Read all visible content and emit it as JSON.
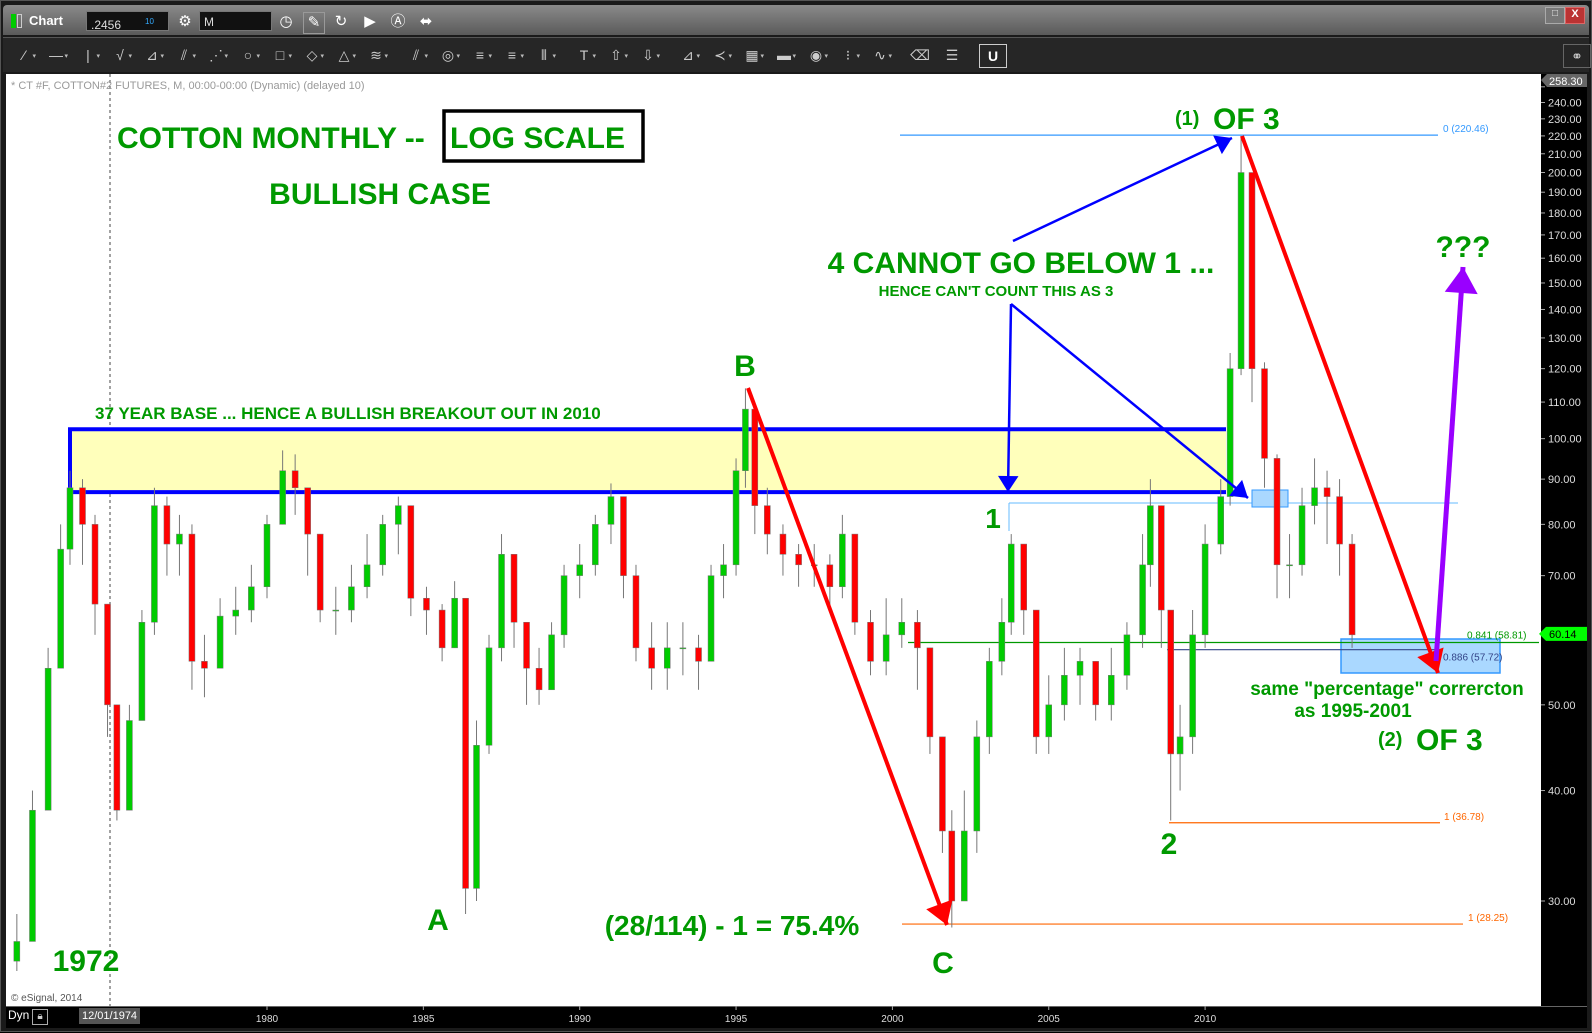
{
  "window": {
    "title": "Chart",
    "symbol_field": ".2456",
    "symbol_superscript": "10",
    "interval_field": "M",
    "minimize_label": "□",
    "close_label": "X"
  },
  "toolbar_icons": [
    "line-tool-icon",
    "horizontal-line-icon",
    "vertical-line-icon",
    "elliott-wave-icon",
    "fan-icon",
    "pitchfork-icon",
    "gann-fan-icon",
    "ellipse-icon",
    "rectangle-icon",
    "diamond-icon",
    "triangle-icon",
    "channel-icon",
    "parallel-lines-icon",
    "circles-icon",
    "fib-retracement-icon",
    "fib-extension-icon",
    "cycle-lines-icon",
    "text-icon",
    "arrow-up-icon",
    "arrow-down-icon",
    "speed-lines-icon",
    "speed-arcs-icon",
    "grid-icon",
    "mob-icon",
    "tj-icon",
    "pti-icon",
    "wave-label-icon",
    "eraser-icon",
    "notes-icon",
    "magnet-icon"
  ],
  "chart": {
    "header": "* CT #F, COTTON#2 FUTURES, M, 00:00-00:00 (Dynamic) (delayed 10)",
    "copyright": "© eSignal, 2014",
    "dyn_label": "Dyn",
    "cursor_date": "12/01/1974",
    "last_price_tag": "60.14",
    "max_price_tag": "258.30",
    "colors": {
      "up": "#00cc00",
      "down": "#ff0000",
      "annotation": "#009900",
      "base_box": "#ffffbb",
      "base_border": "#0000ff",
      "arrow_red": "#ff0000",
      "arrow_blue": "#0000ff",
      "arrow_purple": "#9900ff",
      "fib_orange": "#ff6600"
    }
  },
  "annotations": {
    "title": "COTTON MONTHLY --",
    "title_boxed": "LOG SCALE",
    "subtitle": "BULLISH CASE",
    "base_note": "37 YEAR BASE ... HENCE A BULLISH BREAKOUT OUT IN 2010",
    "label_B": "B",
    "label_A": "A",
    "label_C": "C",
    "label_1": "1",
    "label_2": "2",
    "label_1972": "1972",
    "wave1_prefix": "(1)",
    "wave1": "OF 3",
    "wave2_prefix": "(2)",
    "wave2": "OF 3",
    "cannot": "4 CANNOT GO BELOW 1 ...",
    "hence": "HENCE CAN'T COUNT THIS AS 3",
    "calc": "(28/114) - 1 = 75.4%",
    "same_pct": "same \"percentage\" corrercton",
    "as_period": "as 1995-2001",
    "question": "???"
  },
  "fib_labels": {
    "top": "0 (220.46)",
    "f841": "0.841 (58.81)",
    "f886": "0.886 (57.72)",
    "one_a": "1 (36.78)",
    "one_b": "1 (28.25)"
  },
  "chart_data": {
    "type": "candlestick",
    "title": "COTTON MONTHLY -- LOG SCALE",
    "y_scale": "log",
    "ylim": [
      24,
      258.3
    ],
    "xlim": [
      1971.7,
      2016.6
    ],
    "grid": false,
    "y_ticks": [
      "30.00",
      "40.00",
      "50.00",
      "60.00",
      "70.00",
      "80.00",
      "90.00",
      "100.00",
      "110.00",
      "120.00",
      "130.00",
      "140.00",
      "150.00",
      "160.00",
      "170.00",
      "180.00",
      "190.00",
      "200.00",
      "210.00",
      "220.00",
      "230.00",
      "240.00",
      "250.00"
    ],
    "x_ticks": [
      "1980",
      "1985",
      "1990",
      "1995",
      "2000",
      "2005",
      "2010"
    ],
    "fields": [
      "year",
      "close",
      "high",
      "low"
    ],
    "candles": [
      [
        1972.0,
        27,
        29,
        25
      ],
      [
        1972.5,
        38,
        40,
        30
      ],
      [
        1973.0,
        55,
        58,
        40
      ],
      [
        1973.4,
        75,
        80,
        55
      ],
      [
        1973.7,
        88,
        92,
        72
      ],
      [
        1974.1,
        80,
        90,
        72
      ],
      [
        1974.5,
        65,
        82,
        60
      ],
      [
        1974.9,
        50,
        65,
        46
      ],
      [
        1975.2,
        38,
        50,
        37
      ],
      [
        1975.6,
        48,
        50,
        38
      ],
      [
        1976.0,
        62,
        64,
        48
      ],
      [
        1976.4,
        84,
        88,
        60
      ],
      [
        1976.8,
        76,
        86,
        70
      ],
      [
        1977.2,
        78,
        82,
        70
      ],
      [
        1977.6,
        56,
        80,
        52
      ],
      [
        1978.0,
        55,
        60,
        51
      ],
      [
        1978.5,
        63,
        66,
        55
      ],
      [
        1979.0,
        64,
        68,
        60
      ],
      [
        1979.5,
        68,
        72,
        62
      ],
      [
        1980.0,
        80,
        82,
        66
      ],
      [
        1980.5,
        92,
        97,
        80
      ],
      [
        1980.9,
        88,
        96,
        82
      ],
      [
        1981.3,
        78,
        88,
        70
      ],
      [
        1981.7,
        64,
        78,
        62
      ],
      [
        1982.2,
        64,
        68,
        60
      ],
      [
        1982.7,
        68,
        72,
        62
      ],
      [
        1983.2,
        72,
        78,
        66
      ],
      [
        1983.7,
        80,
        82,
        70
      ],
      [
        1984.2,
        84,
        86,
        74
      ],
      [
        1984.6,
        66,
        84,
        63
      ],
      [
        1985.1,
        64,
        68,
        60
      ],
      [
        1985.6,
        58,
        65,
        56
      ],
      [
        1986.0,
        66,
        69,
        58
      ],
      [
        1986.35,
        31,
        66,
        29
      ],
      [
        1986.7,
        45,
        48,
        30
      ],
      [
        1987.1,
        58,
        60,
        44
      ],
      [
        1987.5,
        74,
        78,
        56
      ],
      [
        1987.9,
        62,
        72,
        58
      ],
      [
        1988.3,
        55,
        62,
        50
      ],
      [
        1988.7,
        52,
        58,
        50
      ],
      [
        1989.1,
        60,
        62,
        52
      ],
      [
        1989.5,
        70,
        72,
        58
      ],
      [
        1990.0,
        72,
        76,
        66
      ],
      [
        1990.5,
        80,
        82,
        70
      ],
      [
        1991.0,
        86,
        89,
        76
      ],
      [
        1991.4,
        70,
        86,
        66
      ],
      [
        1991.8,
        58,
        72,
        56
      ],
      [
        1992.3,
        55,
        62,
        52
      ],
      [
        1992.8,
        58,
        62,
        52
      ],
      [
        1993.3,
        58,
        62,
        54
      ],
      [
        1993.8,
        56,
        60,
        52
      ],
      [
        1994.2,
        70,
        72,
        56
      ],
      [
        1994.6,
        72,
        76,
        66
      ],
      [
        1995.0,
        92,
        95,
        70
      ],
      [
        1995.3,
        108,
        114,
        88
      ],
      [
        1995.6,
        84,
        108,
        78
      ],
      [
        1996.0,
        78,
        88,
        74
      ],
      [
        1996.5,
        74,
        80,
        70
      ],
      [
        1997.0,
        72,
        76,
        68
      ],
      [
        1997.5,
        72,
        76,
        68
      ],
      [
        1998.0,
        68,
        74,
        64
      ],
      [
        1998.4,
        78,
        82,
        66
      ],
      [
        1998.8,
        62,
        78,
        60
      ],
      [
        1999.3,
        56,
        64,
        54
      ],
      [
        1999.8,
        60,
        66,
        54
      ],
      [
        2000.3,
        62,
        66,
        58
      ],
      [
        2000.8,
        58,
        64,
        52
      ],
      [
        2001.2,
        46,
        58,
        44
      ],
      [
        2001.6,
        36,
        46,
        34
      ],
      [
        2001.9,
        30,
        38,
        28
      ],
      [
        2002.3,
        36,
        40,
        30
      ],
      [
        2002.7,
        46,
        48,
        34
      ],
      [
        2003.1,
        56,
        58,
        44
      ],
      [
        2003.5,
        62,
        66,
        54
      ],
      [
        2003.8,
        76,
        78,
        60
      ],
      [
        2004.2,
        64,
        76,
        60
      ],
      [
        2004.6,
        46,
        64,
        44
      ],
      [
        2005.0,
        50,
        54,
        44
      ],
      [
        2005.5,
        54,
        58,
        48
      ],
      [
        2006.0,
        56,
        58,
        50
      ],
      [
        2006.5,
        50,
        56,
        48
      ],
      [
        2007.0,
        54,
        58,
        48
      ],
      [
        2007.5,
        60,
        62,
        52
      ],
      [
        2008.0,
        72,
        78,
        58
      ],
      [
        2008.25,
        84,
        90,
        68
      ],
      [
        2008.6,
        64,
        84,
        58
      ],
      [
        2008.9,
        44,
        64,
        37
      ],
      [
        2009.2,
        46,
        50,
        40
      ],
      [
        2009.6,
        60,
        64,
        44
      ],
      [
        2010.0,
        76,
        80,
        58
      ],
      [
        2010.5,
        86,
        90,
        74
      ],
      [
        2010.8,
        120,
        125,
        84
      ],
      [
        2011.15,
        200,
        220,
        118
      ],
      [
        2011.5,
        120,
        200,
        110
      ],
      [
        2011.9,
        95,
        122,
        88
      ],
      [
        2012.3,
        72,
        96,
        66
      ],
      [
        2012.7,
        72,
        78,
        66
      ],
      [
        2013.1,
        84,
        88,
        70
      ],
      [
        2013.5,
        88,
        95,
        80
      ],
      [
        2013.9,
        86,
        92,
        76
      ],
      [
        2014.3,
        76,
        90,
        70
      ],
      [
        2014.7,
        60,
        78,
        58
      ]
    ],
    "levels": [
      {
        "label": "0 (220.46)",
        "value": 220.46
      },
      {
        "label": "0.841 (58.81)",
        "value": 58.81
      },
      {
        "label": "0.886 (57.72)",
        "value": 57.72
      },
      {
        "label": "1 (36.78)",
        "value": 36.78
      },
      {
        "label": "1 (28.25)",
        "value": 28.25
      }
    ],
    "base_zone": [
      87,
      102.5
    ],
    "last_price": 60.14
  }
}
